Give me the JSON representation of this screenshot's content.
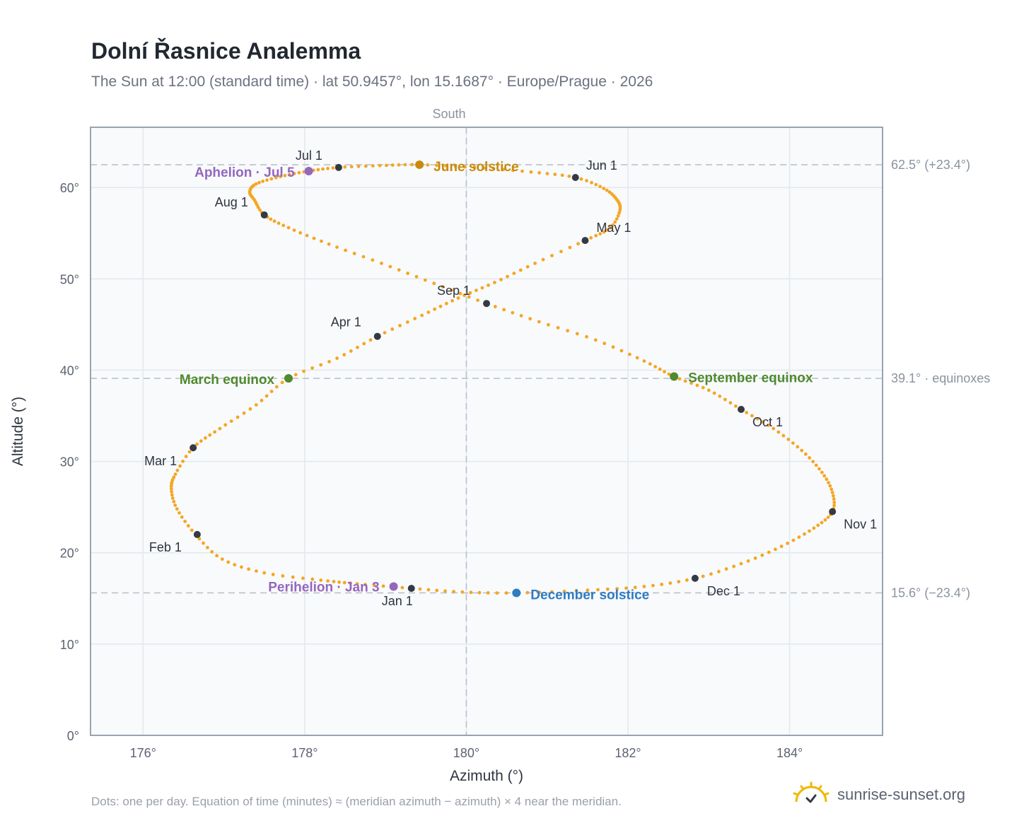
{
  "title": "Dolní Řasnice Analemma",
  "subtitle": "The Sun at 12:00 (standard time) · lat 50.9457°, lon 15.1687° · Europe/Prague · 2026",
  "footnote": "Dots: one per day. Equation of time (minutes) ≈ (meridian azimuth − azimuth) × 4 near the meridian.",
  "brand": {
    "text": "sunrise-sunset.org",
    "icon": "sun-logo-icon"
  },
  "colors": {
    "path": "#f5a623",
    "month_marker": "#343a44",
    "solstice_june": "#c98a0c",
    "solstice_december": "#2f7bc0",
    "equinox": "#4f8a2e",
    "apsis": "#9467bd",
    "plot_bg": "#f8fafc",
    "grid": "#e3e8ee",
    "frame": "#9aa3b0",
    "ref_line": "#b6bec8"
  },
  "chart_data": {
    "type": "scatter",
    "title": "Dolní Řasnice Analemma",
    "xlabel": "Azimuth (°)",
    "ylabel": "Altitude (°)",
    "xlim": [
      175.35,
      185.15
    ],
    "ylim": [
      0,
      66.6
    ],
    "x_ticks": [
      176,
      178,
      180,
      182,
      184
    ],
    "x_tick_labels": [
      "176°",
      "178°",
      "180°",
      "182°",
      "184°"
    ],
    "y_ticks": [
      0,
      10,
      20,
      30,
      40,
      50,
      60
    ],
    "y_tick_labels": [
      "0°",
      "10°",
      "20°",
      "30°",
      "40°",
      "50°",
      "60°"
    ],
    "grid": true,
    "meridian": {
      "x": 180,
      "label": "South"
    },
    "reference_lines": [
      {
        "y": 62.5,
        "label": "62.5° (+23.4°)"
      },
      {
        "y": 39.1,
        "label": "39.1° · equinoxes"
      },
      {
        "y": 15.6,
        "label": "15.6° (−23.4°)"
      }
    ],
    "path_points": [
      [
        179.32,
        16.1
      ],
      [
        178.65,
        16.6
      ],
      [
        178.2,
        17.0
      ],
      [
        177.5,
        17.8
      ],
      [
        176.98,
        19.3
      ],
      [
        176.65,
        22.0
      ],
      [
        176.42,
        24.8
      ],
      [
        176.35,
        27.0
      ],
      [
        176.4,
        28.6
      ],
      [
        176.62,
        31.5
      ],
      [
        176.95,
        33.6
      ],
      [
        177.4,
        36.2
      ],
      [
        177.8,
        39.1
      ],
      [
        178.4,
        41.3
      ],
      [
        178.9,
        43.7
      ],
      [
        179.45,
        46.0
      ],
      [
        179.9,
        47.9
      ],
      [
        180.35,
        49.6
      ],
      [
        180.85,
        51.7
      ],
      [
        181.47,
        54.2
      ],
      [
        181.78,
        55.6
      ],
      [
        181.9,
        57.5
      ],
      [
        181.86,
        58.7
      ],
      [
        181.7,
        59.9
      ],
      [
        181.35,
        61.1
      ],
      [
        180.8,
        61.7
      ],
      [
        180.1,
        62.2
      ],
      [
        179.42,
        62.5
      ],
      [
        178.93,
        62.4
      ],
      [
        178.42,
        62.2
      ],
      [
        178.05,
        61.8
      ],
      [
        177.7,
        61.2
      ],
      [
        177.4,
        60.4
      ],
      [
        177.32,
        59.5
      ],
      [
        177.38,
        58.6
      ],
      [
        177.5,
        57.0
      ],
      [
        177.8,
        55.6
      ],
      [
        178.3,
        53.8
      ],
      [
        178.95,
        51.7
      ],
      [
        179.6,
        49.5
      ],
      [
        180.25,
        47.3
      ],
      [
        180.9,
        45.3
      ],
      [
        181.6,
        43.3
      ],
      [
        182.2,
        41.0
      ],
      [
        182.57,
        39.3
      ],
      [
        183.0,
        37.8
      ],
      [
        183.4,
        35.7
      ],
      [
        183.8,
        33.6
      ],
      [
        184.15,
        31.2
      ],
      [
        184.4,
        28.8
      ],
      [
        184.53,
        26.6
      ],
      [
        184.53,
        24.5
      ],
      [
        184.3,
        22.7
      ],
      [
        183.9,
        20.7
      ],
      [
        183.4,
        18.8
      ],
      [
        182.83,
        17.2
      ],
      [
        182.2,
        16.3
      ],
      [
        181.5,
        15.9
      ],
      [
        180.62,
        15.6
      ],
      [
        179.95,
        15.7
      ],
      [
        179.32,
        16.1
      ]
    ],
    "month_markers": [
      {
        "label": "Jan 1",
        "x": 179.32,
        "y": 16.1
      },
      {
        "label": "Feb 1",
        "x": 176.67,
        "y": 22.0
      },
      {
        "label": "Mar 1",
        "x": 176.62,
        "y": 31.5
      },
      {
        "label": "Apr 1",
        "x": 178.9,
        "y": 43.7
      },
      {
        "label": "May 1",
        "x": 181.47,
        "y": 54.2
      },
      {
        "label": "Jun 1",
        "x": 181.35,
        "y": 61.1
      },
      {
        "label": "Jul 1",
        "x": 178.42,
        "y": 62.2
      },
      {
        "label": "Aug 1",
        "x": 177.5,
        "y": 57.0
      },
      {
        "label": "Sep 1",
        "x": 180.25,
        "y": 47.3
      },
      {
        "label": "Oct 1",
        "x": 183.4,
        "y": 35.7
      },
      {
        "label": "Nov 1",
        "x": 184.53,
        "y": 24.5
      },
      {
        "label": "Dec 1",
        "x": 182.83,
        "y": 17.2
      }
    ],
    "events": [
      {
        "label": "June solstice",
        "x": 179.42,
        "y": 62.5,
        "kind": "solstice_june"
      },
      {
        "label": "December solstice",
        "x": 180.62,
        "y": 15.6,
        "kind": "solstice_december"
      },
      {
        "label": "March equinox",
        "x": 177.8,
        "y": 39.1,
        "kind": "equinox"
      },
      {
        "label": "September equinox",
        "x": 182.57,
        "y": 39.3,
        "kind": "equinox"
      },
      {
        "label": "Aphelion · Jul 5",
        "x": 178.05,
        "y": 61.8,
        "kind": "apsis"
      },
      {
        "label": "Perihelion · Jan 3",
        "x": 179.1,
        "y": 16.3,
        "kind": "apsis"
      }
    ]
  }
}
